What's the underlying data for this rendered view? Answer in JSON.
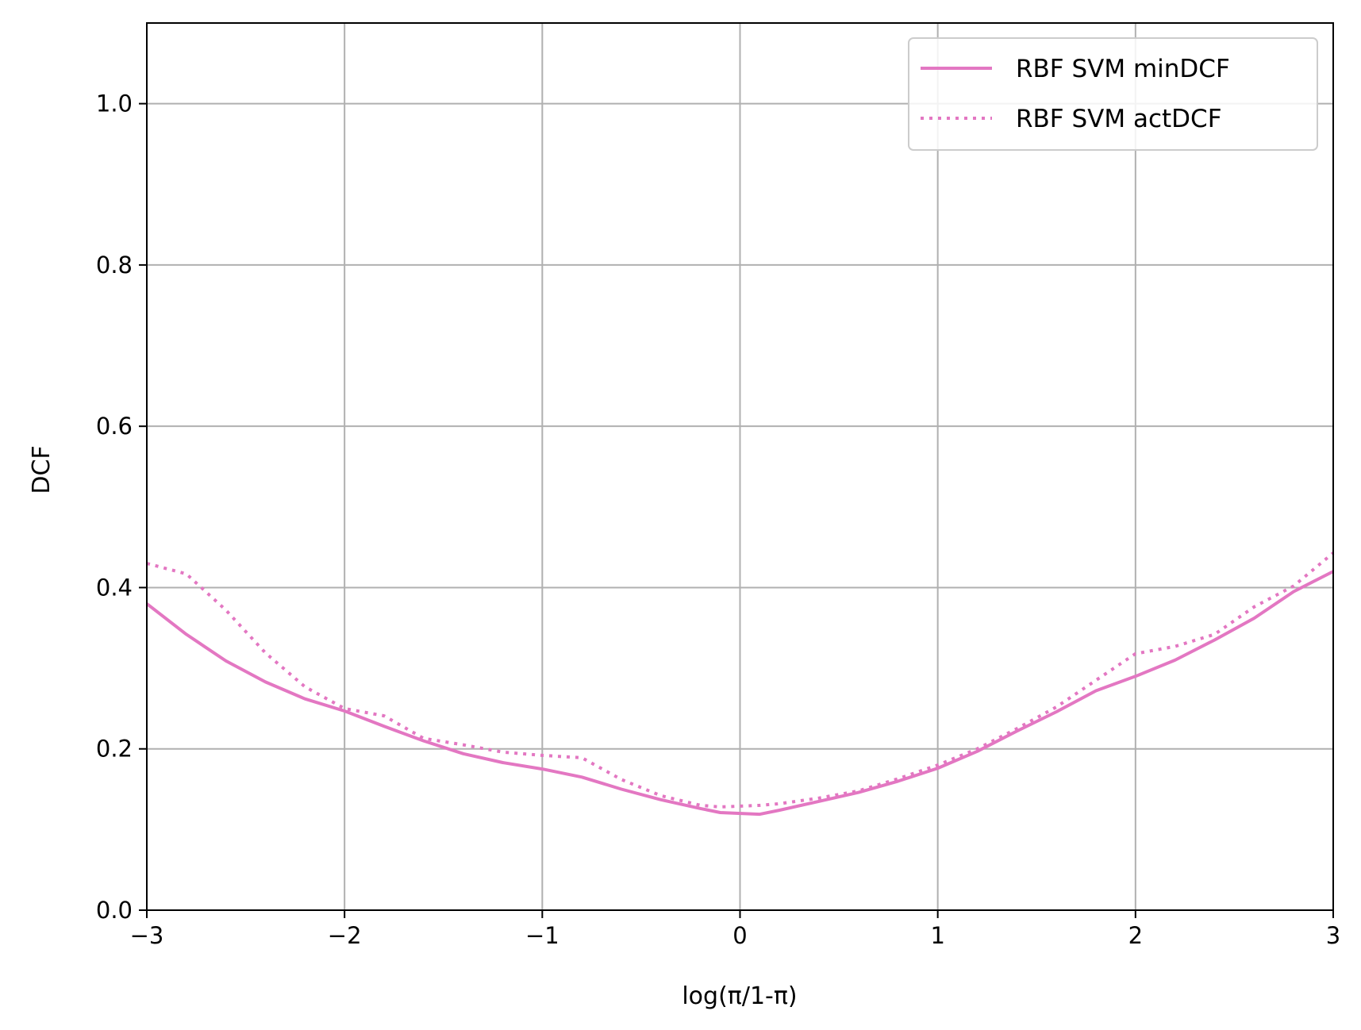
{
  "chart_data": {
    "type": "line",
    "title": "",
    "xlabel": "log(π/1-π)",
    "ylabel": "DCF",
    "xlim": [
      -3,
      3
    ],
    "ylim": [
      0,
      1.1
    ],
    "xticks": [
      -3,
      -2,
      -1,
      0,
      1,
      2,
      3
    ],
    "xtick_labels": [
      "−3",
      "−2",
      "−1",
      "0",
      "1",
      "2",
      "3"
    ],
    "yticks": [
      0.0,
      0.2,
      0.4,
      0.6,
      0.8,
      1.0
    ],
    "ytick_labels": [
      "0.0",
      "0.2",
      "0.4",
      "0.6",
      "0.8",
      "1.0"
    ],
    "grid": true,
    "legend_position": "top-right",
    "x": [
      -3.0,
      -2.8,
      -2.6,
      -2.4,
      -2.2,
      -2.0,
      -1.8,
      -1.6,
      -1.4,
      -1.2,
      -1.0,
      -0.8,
      -0.6,
      -0.4,
      -0.2,
      -0.1,
      0.1,
      0.2,
      0.4,
      0.6,
      0.8,
      1.0,
      1.2,
      1.4,
      1.6,
      1.8,
      2.0,
      2.2,
      2.4,
      2.6,
      2.8,
      3.0
    ],
    "series": [
      {
        "name": "RBF SVM minDCF",
        "style": "solid",
        "color": "#e377c2",
        "values": [
          0.38,
          0.342,
          0.309,
          0.283,
          0.262,
          0.247,
          0.228,
          0.21,
          0.194,
          0.183,
          0.175,
          0.165,
          0.15,
          0.137,
          0.126,
          0.121,
          0.119,
          0.124,
          0.135,
          0.146,
          0.16,
          0.176,
          0.197,
          0.222,
          0.246,
          0.272,
          0.29,
          0.31,
          0.335,
          0.362,
          0.395,
          0.42
        ]
      },
      {
        "name": "RBF SVM actDCF",
        "style": "dotted",
        "color": "#e377c2",
        "values": [
          0.43,
          0.417,
          0.372,
          0.319,
          0.277,
          0.25,
          0.241,
          0.213,
          0.205,
          0.196,
          0.192,
          0.189,
          0.162,
          0.142,
          0.13,
          0.128,
          0.13,
          0.132,
          0.139,
          0.148,
          0.163,
          0.18,
          0.2,
          0.225,
          0.252,
          0.285,
          0.318,
          0.327,
          0.342,
          0.376,
          0.402,
          0.443
        ]
      }
    ]
  }
}
